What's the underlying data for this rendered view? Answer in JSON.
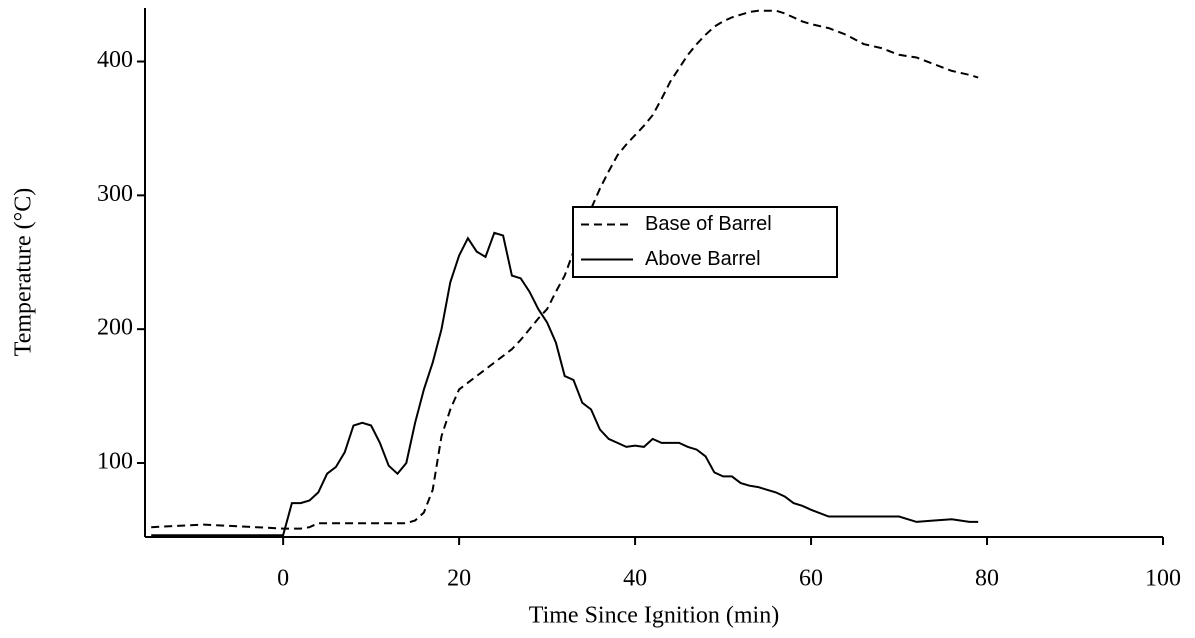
{
  "chart_data": {
    "type": "line",
    "x_label": "Time Since Ignition (min)",
    "y_label": "Temperature (°C)",
    "x": [
      -15,
      -12,
      -9,
      -6,
      -3,
      0,
      1,
      2,
      3,
      4,
      5,
      6,
      7,
      8,
      9,
      10,
      11,
      12,
      13,
      14,
      15,
      16,
      17,
      18,
      19,
      20,
      21,
      22,
      23,
      24,
      25,
      26,
      27,
      28,
      29,
      30,
      31,
      32,
      33,
      34,
      35,
      36,
      37,
      38,
      39,
      40,
      41,
      42,
      43,
      44,
      45,
      46,
      47,
      48,
      49,
      50,
      51,
      52,
      53,
      54,
      55,
      56,
      57,
      58,
      59,
      60,
      62,
      64,
      66,
      68,
      70,
      72,
      74,
      76,
      78,
      79
    ],
    "series": [
      {
        "name": "Base of Barrel",
        "color": "#000000",
        "style": "dashed",
        "values": [
          52,
          53,
          54,
          53,
          52,
          51,
          51,
          51,
          52,
          55,
          55,
          55,
          55,
          55,
          55,
          55,
          55,
          55,
          55,
          55,
          57,
          63,
          80,
          120,
          140,
          155,
          160,
          165,
          170,
          175,
          180,
          185,
          192,
          200,
          208,
          215,
          228,
          240,
          258,
          275,
          290,
          305,
          318,
          330,
          338,
          345,
          352,
          360,
          372,
          385,
          395,
          405,
          413,
          420,
          426,
          430,
          433,
          435,
          437,
          438,
          438,
          438,
          436,
          433,
          430,
          428,
          425,
          420,
          413,
          410,
          405,
          403,
          398,
          393,
          390,
          388
        ]
      },
      {
        "name": "Above Barrel",
        "color": "#000000",
        "style": "solid",
        "values": [
          46,
          46,
          46,
          46,
          46,
          46,
          70,
          70,
          72,
          78,
          92,
          97,
          108,
          128,
          130,
          128,
          115,
          98,
          92,
          100,
          130,
          155,
          175,
          200,
          235,
          255,
          268,
          258,
          254,
          272,
          270,
          240,
          238,
          228,
          215,
          205,
          190,
          165,
          162,
          145,
          140,
          125,
          118,
          115,
          112,
          113,
          112,
          118,
          115,
          115,
          115,
          112,
          110,
          105,
          93,
          90,
          90,
          85,
          83,
          82,
          80,
          78,
          75,
          70,
          68,
          65,
          60,
          60,
          60,
          60,
          60,
          56,
          57,
          58,
          56,
          56
        ]
      }
    ],
    "xlim": [
      -15.7,
      100
    ],
    "xticks": [
      0,
      20,
      40,
      60,
      80,
      100
    ],
    "ylim": [
      44.7,
      440
    ],
    "yticks": [
      100,
      200,
      300,
      400
    ],
    "grid": false,
    "legend": "center"
  }
}
